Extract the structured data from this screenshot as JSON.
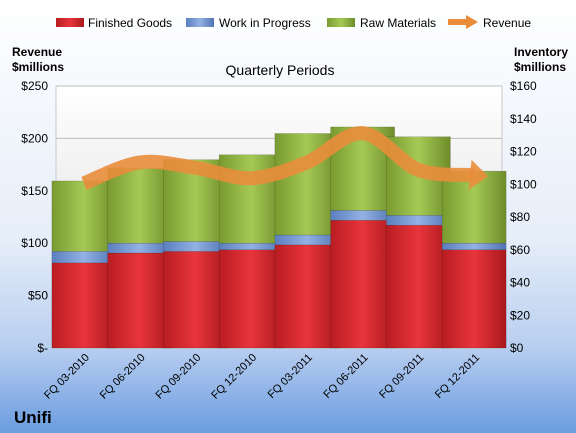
{
  "chart_data": {
    "type": "bar",
    "stacked": true,
    "title": "Quarterly Periods",
    "company": "Unifi",
    "categories": [
      "FQ 03-2010",
      "FQ 06-2010",
      "FQ 09-2010",
      "FQ 12-2010",
      "FQ 03-2011",
      "FQ 06-2011",
      "FQ 09-2011",
      "FQ 12-2011"
    ],
    "series": [
      {
        "name": "Finished Goods",
        "axis": "right",
        "color": "#d9232a",
        "values": [
          52,
          58,
          59,
          60,
          63,
          78,
          75,
          60
        ]
      },
      {
        "name": "Work in Progress",
        "axis": "right",
        "color": "#6f93d1",
        "values": [
          7,
          6,
          6,
          4,
          6,
          6,
          6,
          4
        ]
      },
      {
        "name": "Raw Materials",
        "axis": "right",
        "color": "#8fb23e",
        "values": [
          43,
          46,
          50,
          54,
          62,
          51,
          48,
          44
        ]
      },
      {
        "name": "Revenue",
        "axis": "left",
        "type": "line",
        "color": "#e98d3b",
        "values": [
          157,
          177,
          172,
          162,
          177,
          205,
          170,
          165
        ]
      }
    ],
    "left_axis": {
      "label_line1": "Revenue",
      "label_line2": "$millions",
      "min": 0,
      "max": 250,
      "step": 50,
      "ticks": [
        "$-",
        "$50",
        "$100",
        "$150",
        "$200",
        "$250"
      ]
    },
    "right_axis": {
      "label_line1": "Inventory",
      "label_line2": "$millions",
      "min": 0,
      "max": 160,
      "step": 20,
      "ticks": [
        "$0",
        "$20",
        "$40",
        "$60",
        "$80",
        "$100",
        "$120",
        "$140",
        "$160"
      ]
    },
    "grid": true,
    "legend_position": "top"
  }
}
